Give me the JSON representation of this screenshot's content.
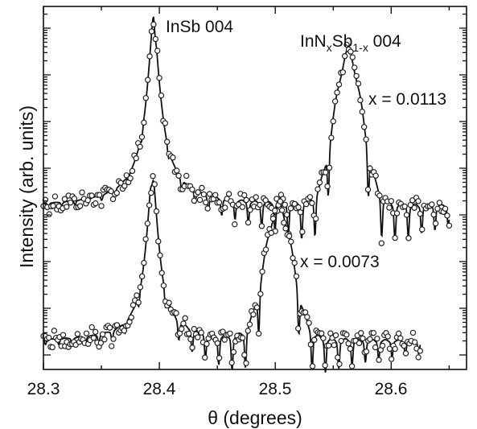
{
  "chart_data": {
    "type": "scatter",
    "xlabel": "θ (degrees)",
    "ylabel": "Intensity (arb. units)",
    "xlim": [
      28.3,
      28.665
    ],
    "x_ticks": [
      "28.3",
      "28.4",
      "28.5",
      "28.6"
    ],
    "y_scale": "log",
    "grid": false,
    "annotations": {
      "substrate_peak": "InSb 004",
      "layer_peak": {
        "base": "InN",
        "sub1": "x",
        "mid": "Sb",
        "sub2": "1-x",
        "suffix": " 004"
      },
      "top_curve": "x = 0.0113",
      "bottom_curve": "x = 0.0073"
    },
    "series": [
      {
        "composition": 0.0113,
        "substrate_peak_theta": 28.395,
        "layer_peak_theta": 28.563,
        "theta_range": [
          28.3,
          28.65
        ],
        "style": "open circles = measured, solid line = simulated"
      },
      {
        "composition": 0.0073,
        "substrate_peak_theta": 28.394,
        "layer_peak_theta": 28.503,
        "theta_range": [
          28.3,
          28.625
        ],
        "style": "open circles = measured, solid line = simulated"
      }
    ],
    "colors": {
      "data": "#222222",
      "fit": "#111111"
    }
  }
}
